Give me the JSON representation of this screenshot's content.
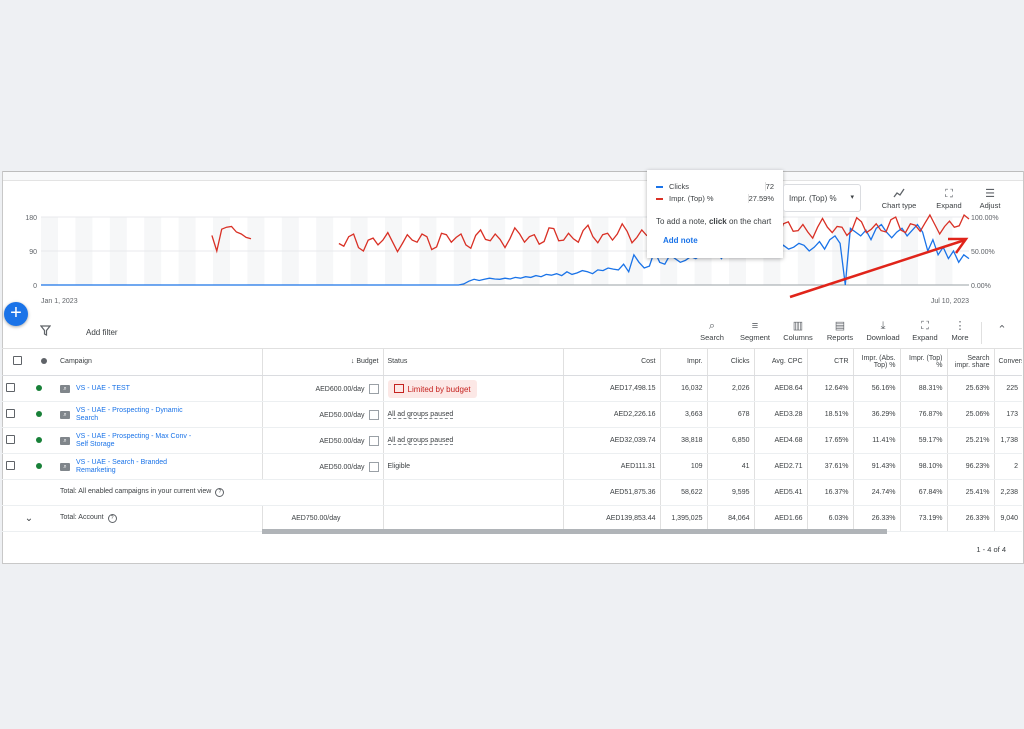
{
  "tooltip": {
    "series": [
      {
        "name": "Clicks",
        "value": "72",
        "color": "#1a73e8"
      },
      {
        "name": "Impr. (Top) %",
        "value": "27.59%",
        "color": "#d93025"
      }
    ],
    "note_prefix": "To add a note, ",
    "note_bold": "click",
    "note_suffix": " on the chart",
    "add_note": "Add note"
  },
  "metric_select": {
    "value": "Impr. (Top) %"
  },
  "chart_tools": {
    "chart_type": "Chart type",
    "expand": "Expand",
    "adjust": "Adjust"
  },
  "chart_data": {
    "type": "line",
    "x_start_label": "Jan 1, 2023",
    "x_end_label": "Jul 10, 2023",
    "left_axis_ticks": [
      "180",
      "90",
      "0"
    ],
    "right_axis_ticks": [
      "100.00%",
      "50.00%",
      "0.00%"
    ],
    "ylim_left": [
      0,
      180
    ],
    "ylim_right": [
      0,
      100
    ],
    "series": [
      {
        "name": "Clicks",
        "color": "#1a73e8",
        "axis": "left",
        "day_values": [
          0,
          0,
          0,
          0,
          0,
          0,
          0,
          0,
          0,
          0,
          0,
          0,
          0,
          0,
          0,
          0,
          0,
          0,
          0,
          0,
          0,
          0,
          0,
          0,
          0,
          0,
          0,
          0,
          0,
          0,
          0,
          0,
          0,
          0,
          0,
          0,
          0,
          0,
          0,
          0,
          0,
          0,
          0,
          0,
          0,
          0,
          0,
          0,
          0,
          0,
          0,
          0,
          0,
          0,
          0,
          0,
          0,
          0,
          0,
          0,
          0,
          0,
          0,
          0,
          0,
          0,
          0,
          0,
          0,
          0,
          0,
          0,
          0,
          0,
          0,
          0,
          0,
          0,
          0,
          0,
          0,
          0,
          3,
          10,
          15,
          12,
          15,
          18,
          16,
          15,
          18,
          16,
          20,
          18,
          22,
          20,
          25,
          22,
          28,
          26,
          30,
          25,
          35,
          28,
          32,
          38,
          35,
          30,
          40,
          38,
          45,
          42,
          40,
          55,
          35,
          80,
          60,
          45,
          50,
          90,
          60,
          55,
          80,
          70,
          60,
          65,
          75,
          70,
          80,
          75,
          90,
          85,
          70,
          95,
          80,
          90,
          100,
          85,
          95,
          85,
          110,
          95,
          100,
          90,
          105,
          95,
          100,
          110,
          105,
          90,
          100,
          115,
          95,
          120,
          130,
          110,
          0,
          150,
          140,
          130,
          145,
          120,
          150,
          160,
          140,
          125,
          140,
          150,
          130,
          145,
          160,
          140,
          90,
          120,
          80,
          100,
          70,
          90,
          60,
          80,
          70
        ]
      },
      {
        "name": "Impr. (Top) %",
        "color": "#d93025",
        "axis": "right",
        "day_values": [
          null,
          null,
          null,
          null,
          null,
          null,
          null,
          null,
          null,
          null,
          null,
          null,
          null,
          null,
          null,
          null,
          null,
          null,
          null,
          null,
          null,
          null,
          null,
          null,
          null,
          null,
          null,
          null,
          null,
          null,
          null,
          null,
          null,
          null,
          null,
          null,
          null,
          null,
          null,
          null,
          null,
          null,
          null,
          null,
          null,
          null,
          null,
          null,
          null,
          null,
          null,
          null,
          null,
          null,
          null,
          null,
          null,
          null,
          null,
          null,
          null,
          null,
          null,
          null,
          null,
          null,
          null,
          null,
          null,
          null,
          null,
          null,
          null,
          null,
          null,
          null,
          null,
          null,
          null,
          null,
          null,
          null,
          null,
          null,
          null,
          null,
          null,
          null,
          null,
          null,
          null,
          null,
          null,
          null,
          null,
          null,
          null,
          null,
          null,
          null,
          null,
          null,
          null,
          null,
          null,
          null,
          null,
          null,
          null,
          null,
          null,
          null,
          null,
          null,
          null,
          null,
          null,
          null,
          null,
          null,
          null,
          null,
          null,
          null,
          null,
          null,
          null,
          null,
          null,
          null,
          null,
          null,
          null,
          null,
          null,
          null,
          null,
          null,
          null,
          null,
          null,
          null,
          null,
          null,
          null,
          null,
          null,
          null,
          null,
          null,
          null,
          null,
          null,
          null,
          null,
          null,
          null,
          null,
          null,
          null,
          null,
          null,
          null,
          null,
          null,
          null,
          null,
          null,
          null,
          null,
          null,
          null,
          null,
          null,
          null,
          null,
          null,
          null,
          null,
          null,
          null,
          null,
          null,
          null,
          null,
          null,
          null,
          null,
          null,
          null,
          null
        ]
      }
    ]
  },
  "filterbar": {
    "add_filter": "Add filter",
    "tools": [
      "Search",
      "Segment",
      "Columns",
      "Reports",
      "Download",
      "Expand",
      "More"
    ]
  },
  "table": {
    "columns": [
      "Campaign",
      "Budget",
      "Status",
      "Cost",
      "Impr.",
      "Clicks",
      "Avg. CPC",
      "CTR",
      "Impr. (Abs. Top) %",
      "Impr. (Top) %",
      "Search impr. share",
      "Conversi"
    ],
    "rows": [
      {
        "name": "VS - UAE - TEST",
        "budget": "AED600.00/day",
        "status": "Limited by budget",
        "cost": "AED17,498.15",
        "impr": "16,032",
        "clicks": "2,026",
        "cpc": "AED8.64",
        "ctr": "12.64%",
        "abs_top": "56.16%",
        "top": "88.31%",
        "sis": "25.63%",
        "conv": "225"
      },
      {
        "name": "VS - UAE - Prospecting - Dynamic Search",
        "budget": "AED50.00/day",
        "status": "All ad groups paused",
        "cost": "AED2,226.16",
        "impr": "3,663",
        "clicks": "678",
        "cpc": "AED3.28",
        "ctr": "18.51%",
        "abs_top": "36.29%",
        "top": "76.87%",
        "sis": "25.06%",
        "conv": "173"
      },
      {
        "name": "VS - UAE - Prospecting - Max Conv - Self Storage",
        "budget": "AED50.00/day",
        "status": "All ad groups paused",
        "cost": "AED32,039.74",
        "impr": "38,818",
        "clicks": "6,850",
        "cpc": "AED4.68",
        "ctr": "17.65%",
        "abs_top": "11.41%",
        "top": "59.17%",
        "sis": "25.21%",
        "conv": "1,738"
      },
      {
        "name": "VS - UAE - Search - Branded Remarketing",
        "budget": "AED50.00/day",
        "status": "Eligible",
        "cost": "AED111.31",
        "impr": "109",
        "clicks": "41",
        "cpc": "AED2.71",
        "ctr": "37.61%",
        "abs_top": "91.43%",
        "top": "98.10%",
        "sis": "96.23%",
        "conv": "2"
      }
    ],
    "total_enabled": {
      "label": "Total: All enabled campaigns in your current view",
      "cost": "AED51,875.36",
      "impr": "58,622",
      "clicks": "9,595",
      "cpc": "AED5.41",
      "ctr": "16.37%",
      "abs_top": "24.74%",
      "top": "67.84%",
      "sis": "25.41%",
      "conv": "2,238"
    },
    "total_account": {
      "label": "Total: Account",
      "budget": "AED750.00/day",
      "cost": "AED139,853.44",
      "impr": "1,395,025",
      "clicks": "84,064",
      "cpc": "AED1.66",
      "ctr": "6.03%",
      "abs_top": "26.33%",
      "top": "73.19%",
      "sis": "26.33%",
      "conv": "9,040"
    }
  },
  "pager": {
    "range": "1 - 4 of 4"
  }
}
